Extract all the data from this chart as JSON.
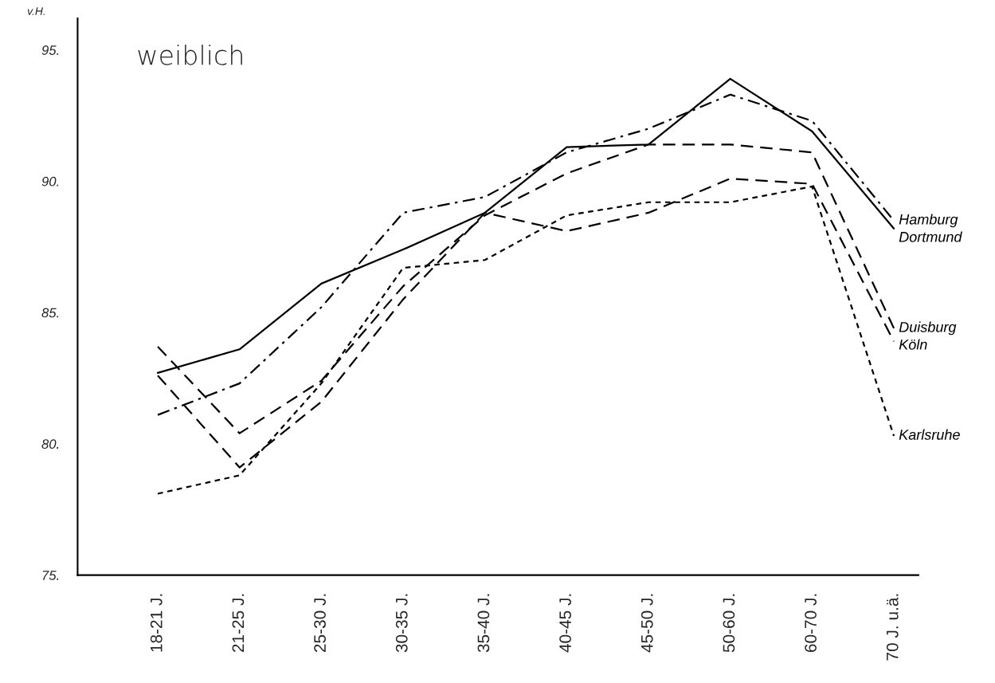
{
  "chart_data": {
    "type": "line",
    "title": "weiblich",
    "ylabel": "v.H.",
    "categories": [
      "18-21 J.",
      "21-25 J.",
      "25-30 J.",
      "30-35 J.",
      "35-40 J.",
      "40-45 J.",
      "45-50 J.",
      "50-60 J.",
      "60-70 J.",
      "70 J. u.ä."
    ],
    "series": [
      {
        "name": "Hamburg",
        "color": "#000000",
        "line_style": "dashdot",
        "values": [
          81.1,
          82.3,
          85.2,
          88.8,
          89.4,
          91.1,
          92.0,
          93.3,
          92.3,
          88.5
        ]
      },
      {
        "name": "Dortmund",
        "color": "#000000",
        "line_style": "solid",
        "values": [
          82.7,
          83.6,
          86.1,
          87.4,
          88.8,
          91.3,
          91.4,
          93.9,
          91.9,
          88.2
        ]
      },
      {
        "name": "Duisburg",
        "color": "#000000",
        "line_style": "dashed",
        "values": [
          83.7,
          80.4,
          82.4,
          86.0,
          88.7,
          90.3,
          91.4,
          91.4,
          91.1,
          84.4
        ]
      },
      {
        "name": "Köln",
        "color": "#000000",
        "line_style": "dashed",
        "values": [
          82.6,
          79.1,
          81.6,
          85.5,
          88.8,
          88.1,
          88.8,
          90.1,
          89.9,
          83.9
        ]
      },
      {
        "name": "Karlsruhe",
        "color": "#000000",
        "line_style": "dotted",
        "values": [
          78.1,
          78.8,
          82.3,
          86.7,
          87.0,
          88.7,
          89.2,
          89.2,
          89.8,
          80.3
        ]
      }
    ],
    "ylim": [
      75,
      96.2
    ],
    "yticks": [
      {
        "value": 75,
        "label": "75."
      },
      {
        "value": 80,
        "label": "80."
      },
      {
        "value": 85,
        "label": "85."
      },
      {
        "value": 90,
        "label": "90."
      },
      {
        "value": 95,
        "label": "95."
      }
    ],
    "grid": false,
    "legend": false,
    "marker": "none"
  }
}
